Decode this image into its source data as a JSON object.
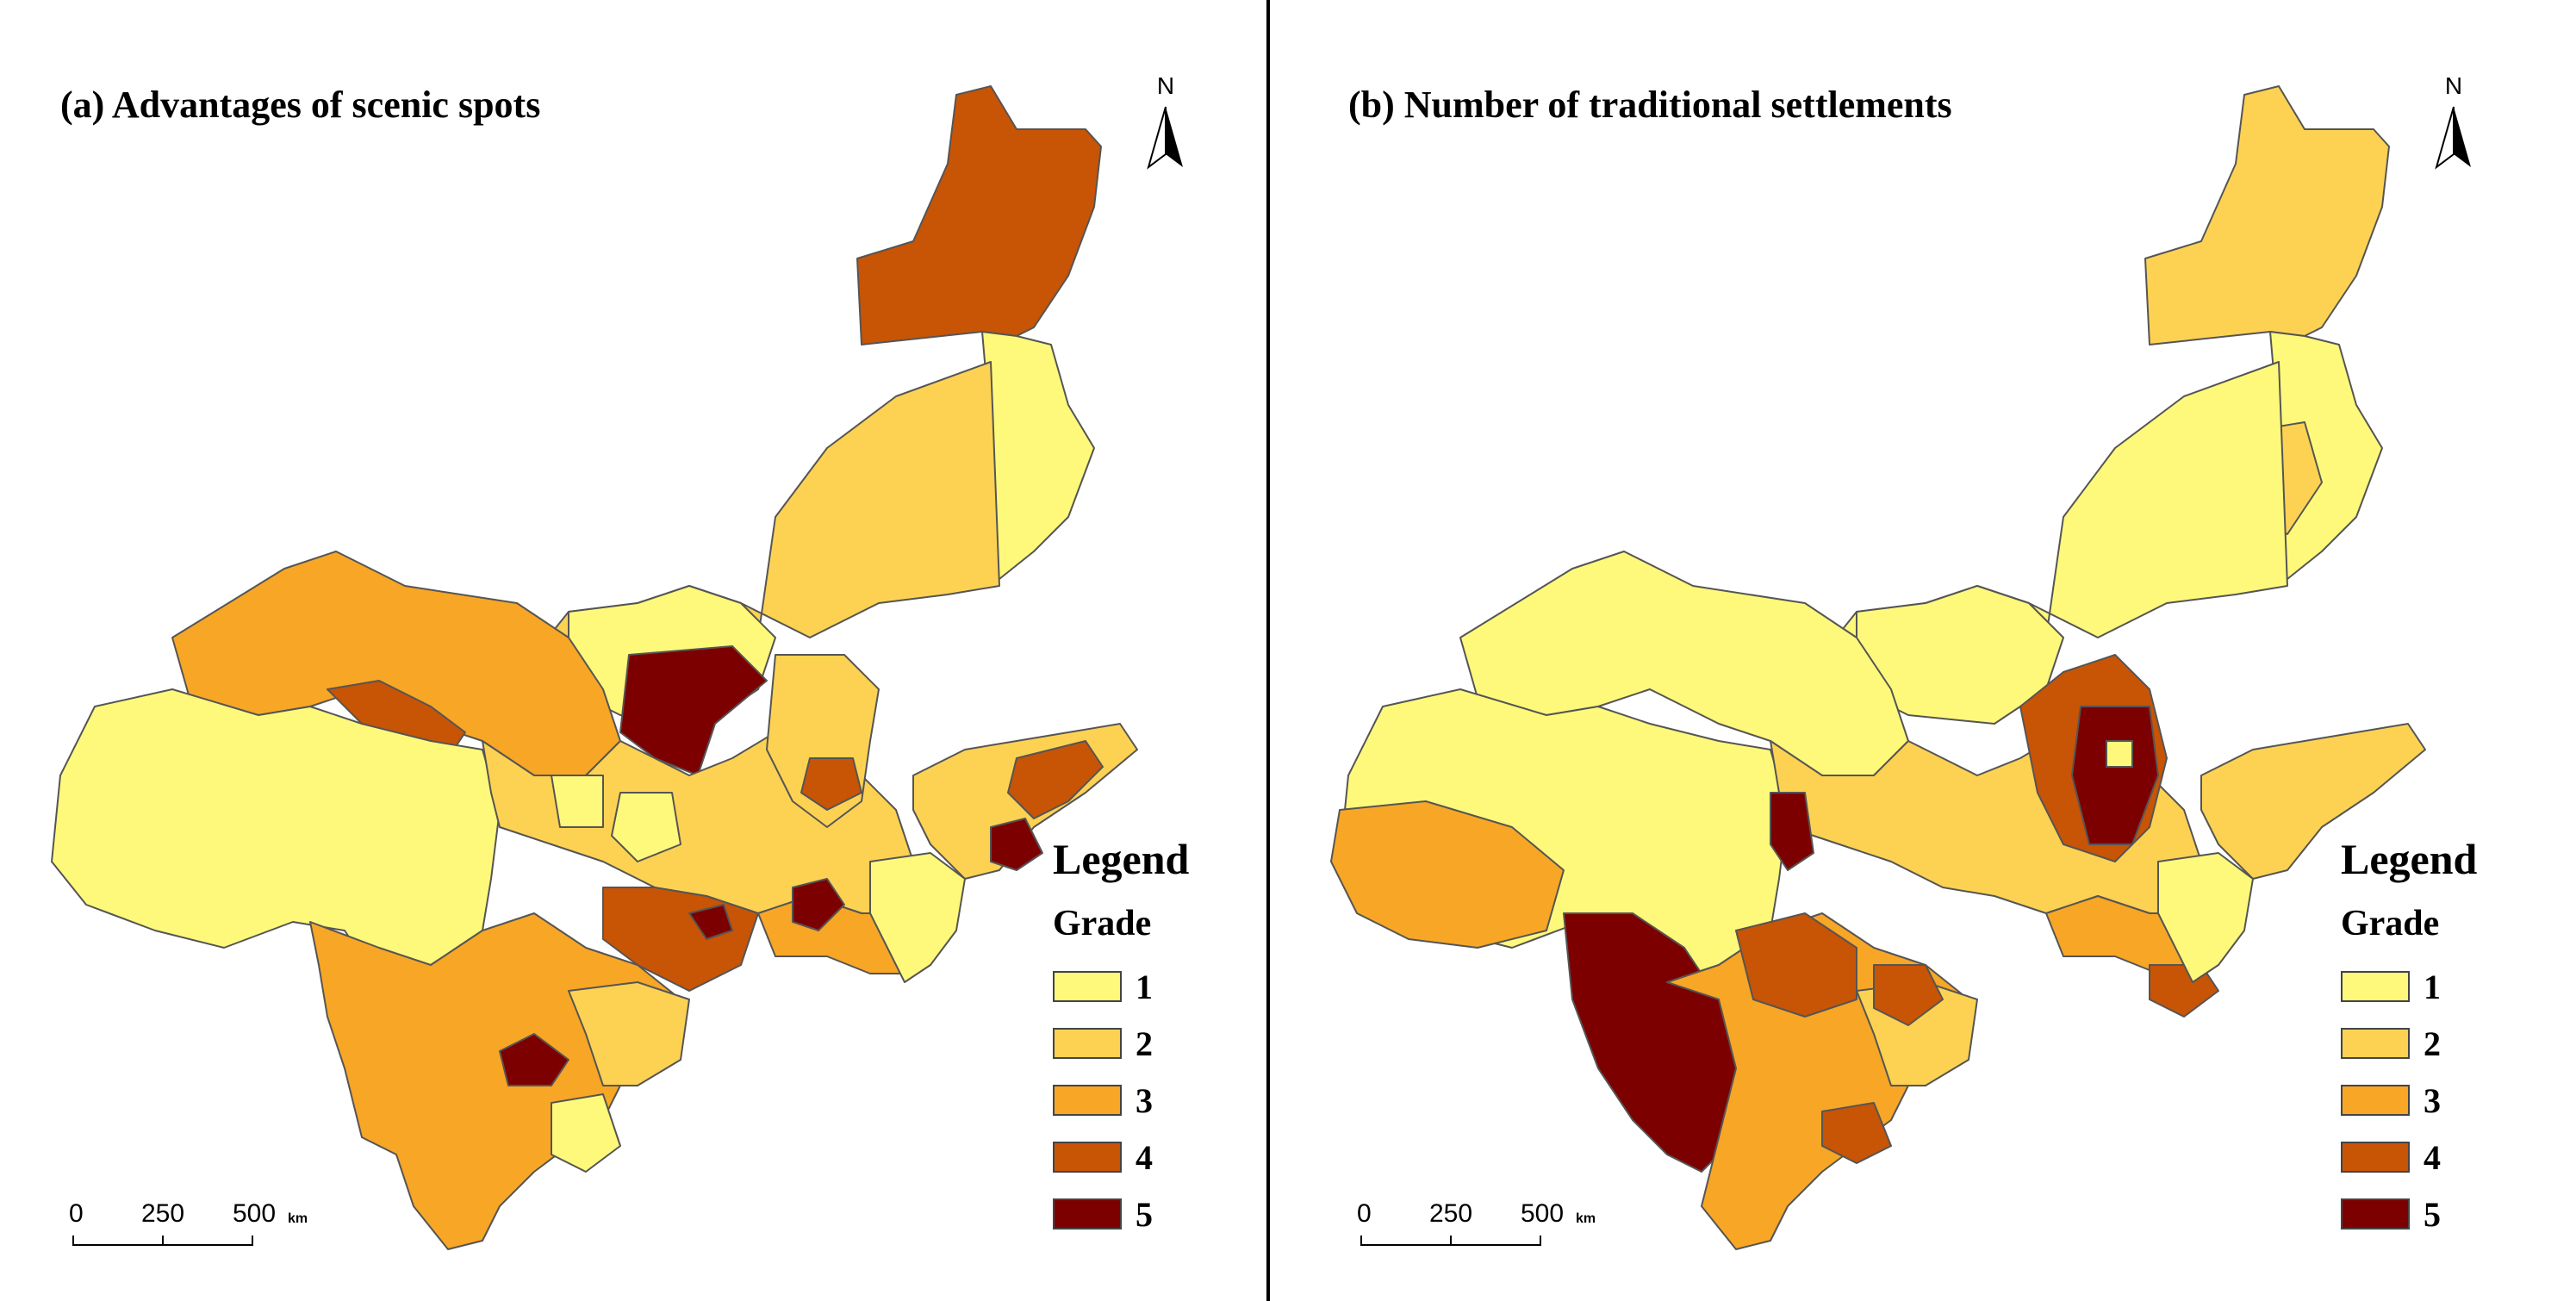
{
  "panels": [
    {
      "title": "(a) Advantages of scenic spots",
      "north_label": "N",
      "legend": {
        "title": "Legend",
        "subtitle": "Grade",
        "items": [
          {
            "label": "1",
            "color": "#FEF97B"
          },
          {
            "label": "2",
            "color": "#FDD253"
          },
          {
            "label": "3",
            "color": "#F8A625"
          },
          {
            "label": "4",
            "color": "#C85406"
          },
          {
            "label": "5",
            "color": "#7D0000"
          }
        ]
      },
      "scale": {
        "ticks": [
          "0",
          "250",
          "500"
        ],
        "unit": "km"
      }
    },
    {
      "title": "(b) Number of traditional settlements",
      "north_label": "N",
      "legend": {
        "title": "Legend",
        "subtitle": "Grade",
        "items": [
          {
            "label": "1",
            "color": "#FEF97B"
          },
          {
            "label": "2",
            "color": "#FDD253"
          },
          {
            "label": "3",
            "color": "#F8A625"
          },
          {
            "label": "4",
            "color": "#C85406"
          },
          {
            "label": "5",
            "color": "#7D0000"
          }
        ]
      },
      "scale": {
        "ticks": [
          "0",
          "250",
          "500"
        ],
        "unit": "km"
      }
    }
  ]
}
